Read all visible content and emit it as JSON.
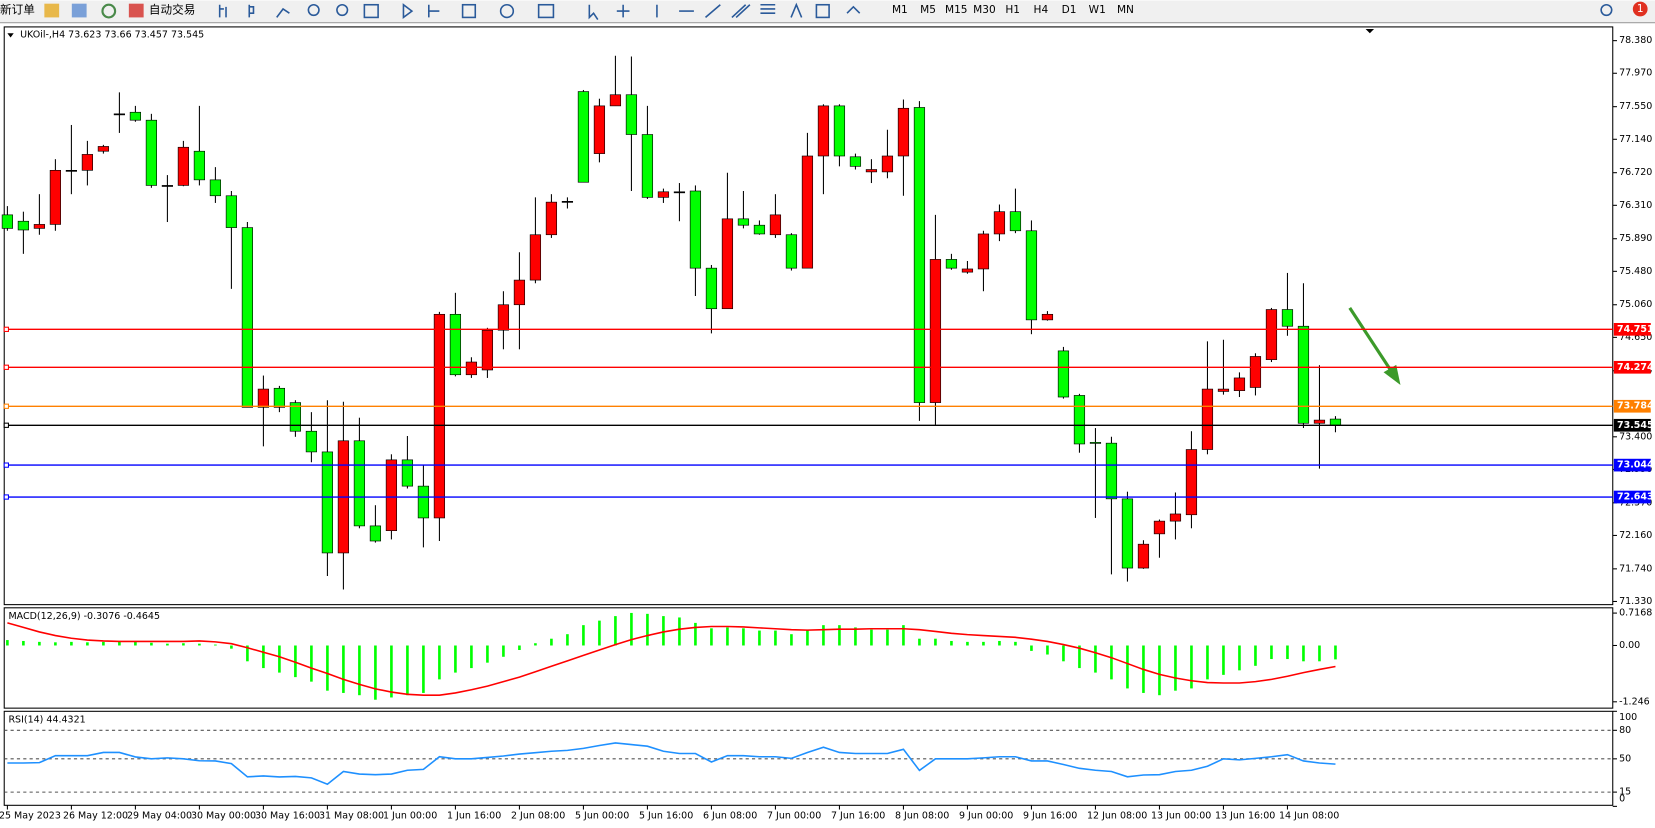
{
  "toolbar": {
    "new_order": "新订单",
    "auto_trading": "自动交易",
    "timeframes": [
      "M1",
      "M5",
      "M15",
      "M30",
      "H1",
      "H4",
      "D1",
      "W1",
      "MN"
    ],
    "notifications": "1"
  },
  "chart_data": [
    {
      "type": "candlestick",
      "title": "UKOil-,H4",
      "categories": [
        "25 May 2023",
        null,
        null,
        null,
        "26 May 12:00",
        null,
        null,
        null,
        "29 May 04:00",
        null,
        null,
        null,
        "30 May 00:00",
        null,
        null,
        null,
        "30 May 16:00",
        null,
        null,
        null,
        "31 May 08:00",
        null,
        null,
        null,
        "1 Jun 00:00",
        null,
        null,
        null,
        "1 Jun 16:00",
        null,
        null,
        null,
        "2 Jun 08:00",
        null,
        null,
        null,
        "5 Jun 00:00",
        null,
        null,
        null,
        "5 Jun 16:00",
        null,
        null,
        null,
        "6 Jun 08:00",
        null,
        null,
        null,
        "7 Jun 00:00",
        null,
        null,
        null,
        "7 Jun 16:00",
        null,
        null,
        null,
        "8 Jun 08:00",
        null,
        null,
        null,
        "9 Jun 00:00",
        null,
        null,
        null,
        "9 Jun 16:00",
        null,
        null,
        null,
        "12 Jun 08:00",
        null,
        null,
        null,
        "13 Jun 00:00",
        null,
        null,
        null,
        "13 Jun 16:00",
        null,
        null,
        null,
        "14 Jun 08:00",
        null,
        null,
        null
      ],
      "open": [
        76.19,
        76.11,
        76.02,
        76.07,
        76.75,
        76.75,
        76.99,
        77.46,
        77.48,
        77.38,
        76.56,
        76.56,
        76.99,
        76.63,
        76.43,
        76.03,
        73.77,
        74.01,
        73.83,
        73.47,
        73.21,
        71.94,
        73.35,
        72.28,
        72.22,
        73.11,
        72.78,
        72.38,
        74.94,
        74.18,
        74.24,
        74.74,
        75.06,
        75.37,
        75.94,
        76.36,
        77.74,
        76.96,
        77.56,
        77.7,
        77.2,
        76.41,
        76.48,
        76.49,
        75.52,
        75.01,
        76.14,
        76.06,
        75.94,
        75.94,
        75.52,
        76.93,
        77.56,
        76.92,
        76.73,
        76.73,
        76.93,
        77.54,
        73.83,
        75.63,
        75.47,
        75.51,
        75.95,
        76.23,
        75.99,
        74.87,
        74.48,
        73.92,
        73.33,
        73.32,
        72.62,
        71.75,
        72.18,
        72.34,
        72.42,
        73.24,
        73.97,
        73.98,
        74.02,
        74.37,
        75.0,
        74.79,
        73.57,
        73.623
      ],
      "high": [
        76.3,
        76.23,
        76.45,
        76.89,
        77.32,
        77.12,
        77.07,
        77.73,
        77.56,
        77.46,
        76.69,
        77.12,
        77.56,
        76.79,
        76.49,
        76.1,
        74.17,
        74.04,
        73.86,
        73.71,
        73.86,
        73.84,
        73.64,
        72.54,
        73.18,
        73.41,
        73.04,
        74.97,
        75.21,
        74.4,
        74.77,
        75.23,
        75.72,
        76.41,
        76.45,
        76.41,
        77.76,
        77.65,
        78.19,
        78.18,
        77.56,
        76.52,
        76.59,
        76.56,
        75.56,
        76.72,
        76.49,
        76.12,
        76.45,
        75.96,
        77.22,
        77.58,
        77.58,
        76.96,
        76.89,
        77.26,
        77.64,
        77.62,
        76.19,
        75.7,
        75.61,
        75.99,
        76.32,
        76.52,
        76.12,
        74.98,
        74.53,
        73.94,
        73.51,
        73.4,
        72.71,
        72.1,
        72.36,
        72.7,
        73.47,
        74.6,
        74.62,
        74.21,
        74.45,
        75.02,
        75.46,
        75.33,
        74.3,
        73.66
      ],
      "low": [
        75.99,
        75.7,
        75.94,
        75.99,
        76.45,
        76.56,
        76.96,
        77.22,
        77.36,
        76.53,
        76.1,
        76.55,
        76.56,
        76.34,
        75.26,
        73.77,
        73.28,
        73.71,
        73.4,
        73.08,
        71.65,
        71.48,
        72.25,
        72.07,
        72.11,
        72.75,
        72.01,
        72.09,
        74.16,
        74.14,
        74.14,
        74.5,
        74.5,
        75.33,
        75.9,
        76.27,
        76.6,
        76.85,
        77.56,
        76.49,
        76.39,
        76.34,
        76.11,
        75.17,
        74.7,
        75.01,
        76.02,
        75.94,
        75.9,
        75.49,
        75.52,
        76.45,
        76.8,
        76.76,
        76.59,
        76.65,
        76.43,
        73.6,
        73.55,
        75.5,
        75.45,
        75.23,
        75.86,
        75.96,
        74.69,
        74.86,
        73.88,
        73.2,
        72.38,
        71.67,
        71.58,
        71.74,
        71.88,
        72.11,
        72.25,
        73.18,
        73.93,
        73.9,
        73.92,
        74.34,
        74.67,
        73.51,
        73.0,
        73.457
      ],
      "close": [
        76.02,
        76.0,
        76.07,
        76.75,
        76.75,
        76.95,
        77.05,
        77.46,
        77.38,
        76.56,
        76.56,
        77.04,
        76.63,
        76.43,
        76.03,
        73.77,
        74.0,
        73.77,
        73.47,
        73.21,
        71.94,
        73.35,
        72.28,
        72.09,
        73.11,
        72.78,
        72.38,
        74.94,
        74.18,
        74.34,
        74.74,
        75.06,
        75.37,
        75.94,
        76.35,
        76.36,
        76.6,
        77.56,
        77.7,
        77.2,
        76.41,
        76.48,
        76.48,
        75.52,
        75.01,
        76.14,
        76.06,
        75.95,
        76.19,
        75.52,
        76.93,
        77.56,
        76.93,
        76.8,
        76.76,
        76.93,
        77.53,
        73.83,
        75.63,
        75.52,
        75.51,
        75.95,
        76.23,
        75.99,
        74.87,
        74.94,
        73.9,
        73.31,
        73.32,
        72.62,
        71.75,
        72.05,
        72.34,
        72.43,
        73.24,
        74.0,
        74.0,
        74.14,
        74.41,
        75.0,
        74.79,
        73.57,
        73.61,
        73.545
      ],
      "up_color": "#ff0000",
      "down_color": "#00ff00",
      "doji_color": "#000000",
      "wick_color": "#000000",
      "ylim": [
        71.33,
        78.38
      ],
      "yticks": [
        {
          "value": 78.38,
          "label": "78.380"
        },
        {
          "value": 77.97,
          "label": "77.970"
        },
        {
          "value": 77.55,
          "label": "77.550"
        },
        {
          "value": 77.14,
          "label": "77.140"
        },
        {
          "value": 76.72,
          "label": "76.720"
        },
        {
          "value": 76.31,
          "label": "76.310"
        },
        {
          "value": 75.89,
          "label": "75.890"
        },
        {
          "value": 75.48,
          "label": "75.480"
        },
        {
          "value": 75.06,
          "label": "75.060"
        },
        {
          "value": 74.65,
          "label": "74.650"
        },
        {
          "value": 74.23,
          "label": "74.230"
        },
        {
          "value": 73.4,
          "label": "73.400"
        },
        {
          "value": 72.99,
          "label": "72.990"
        },
        {
          "value": 72.57,
          "label": "72.570"
        },
        {
          "value": 72.16,
          "label": "72.160"
        },
        {
          "value": 71.74,
          "label": "71.740"
        },
        {
          "value": 71.33,
          "label": "71.330"
        }
      ],
      "levels": [
        {
          "value": 74.751,
          "color": "#ff0000"
        },
        {
          "value": 74.274,
          "color": "#ff0000"
        },
        {
          "value": 73.784,
          "color": "#ff8000"
        },
        {
          "value": 73.545,
          "color": "#000000"
        },
        {
          "value": 73.044,
          "color": "#0000ff"
        },
        {
          "value": 72.643,
          "color": "#0000ff"
        }
      ]
    },
    {
      "type": "macd",
      "title": "MACD(12,26,9)",
      "histogram": {
        "color": "#00ff00",
        "values": [
          0.12,
          0.1,
          0.08,
          0.07,
          0.08,
          0.07,
          0.08,
          0.1,
          0.1,
          0.06,
          0.04,
          0.05,
          0.04,
          0.02,
          -0.07,
          -0.35,
          -0.5,
          -0.6,
          -0.7,
          -0.8,
          -1.0,
          -1.05,
          -1.1,
          -1.2,
          -1.15,
          -1.1,
          -1.05,
          -0.75,
          -0.6,
          -0.5,
          -0.38,
          -0.25,
          -0.1,
          0.05,
          0.15,
          0.25,
          0.45,
          0.55,
          0.65,
          0.72,
          0.7,
          0.65,
          0.62,
          0.5,
          0.38,
          0.4,
          0.38,
          0.33,
          0.33,
          0.25,
          0.35,
          0.45,
          0.45,
          0.4,
          0.35,
          0.35,
          0.45,
          0.15,
          0.15,
          0.1,
          0.08,
          0.08,
          0.1,
          0.08,
          -0.12,
          -0.2,
          -0.35,
          -0.5,
          -0.6,
          -0.75,
          -0.95,
          -1.05,
          -1.1,
          -1.0,
          -0.95,
          -0.75,
          -0.65,
          -0.55,
          -0.45,
          -0.3,
          -0.3,
          -0.35,
          -0.35,
          -0.3076
        ]
      },
      "signal": {
        "color": "#ff0000",
        "values": [
          0.5,
          0.4,
          0.3,
          0.22,
          0.16,
          0.12,
          0.1,
          0.09,
          0.09,
          0.09,
          0.09,
          0.09,
          0.1,
          0.08,
          0.04,
          -0.05,
          -0.15,
          -0.25,
          -0.37,
          -0.5,
          -0.62,
          -0.75,
          -0.86,
          -0.96,
          -1.03,
          -1.08,
          -1.1,
          -1.1,
          -1.05,
          -0.98,
          -0.9,
          -0.8,
          -0.7,
          -0.58,
          -0.46,
          -0.34,
          -0.22,
          -0.1,
          0.02,
          0.13,
          0.22,
          0.3,
          0.36,
          0.4,
          0.42,
          0.42,
          0.41,
          0.39,
          0.37,
          0.35,
          0.34,
          0.35,
          0.36,
          0.36,
          0.37,
          0.37,
          0.37,
          0.35,
          0.31,
          0.27,
          0.24,
          0.22,
          0.2,
          0.18,
          0.14,
          0.09,
          0.02,
          -0.06,
          -0.16,
          -0.27,
          -0.4,
          -0.53,
          -0.64,
          -0.72,
          -0.78,
          -0.82,
          -0.83,
          -0.83,
          -0.8,
          -0.75,
          -0.68,
          -0.6,
          -0.53,
          -0.4645
        ]
      },
      "ylim": [
        -1.246,
        0.7168
      ],
      "yticks": [
        0.7168,
        {
          "value": 0,
          "label": "0.00"
        },
        -1.246
      ]
    },
    {
      "type": "rsi",
      "title": "RSI(14)",
      "color": "#1e90ff",
      "values": [
        45.6,
        45.6,
        46,
        53.3,
        53.3,
        53.3,
        56.7,
        56.7,
        52,
        50,
        51,
        50,
        48,
        47.8,
        45,
        31.1,
        32,
        31,
        31.5,
        30,
        23.3,
        36.7,
        34,
        33.3,
        34,
        38,
        38.9,
        52.2,
        50,
        50,
        51.5,
        53,
        55,
        56.5,
        58,
        58.9,
        61,
        64,
        66.7,
        65,
        63.3,
        58,
        55.6,
        55.6,
        46.7,
        53.3,
        53.3,
        52.2,
        52.2,
        50.5,
        56.7,
        62.2,
        56.7,
        55.6,
        55.6,
        55.6,
        60,
        37.8,
        50,
        50,
        50,
        51,
        52.2,
        52.2,
        47.8,
        47.8,
        44,
        40,
        38,
        36.7,
        31.1,
        33,
        33.3,
        36.7,
        38,
        42.2,
        50,
        48.9,
        50.5,
        52.2,
        54.4,
        47.8,
        45.6,
        44.4321
      ],
      "ylim": [
        0,
        100
      ],
      "yticks": [
        100,
        80,
        50,
        15,
        0
      ],
      "levels": [
        80,
        50,
        15
      ]
    }
  ]
}
